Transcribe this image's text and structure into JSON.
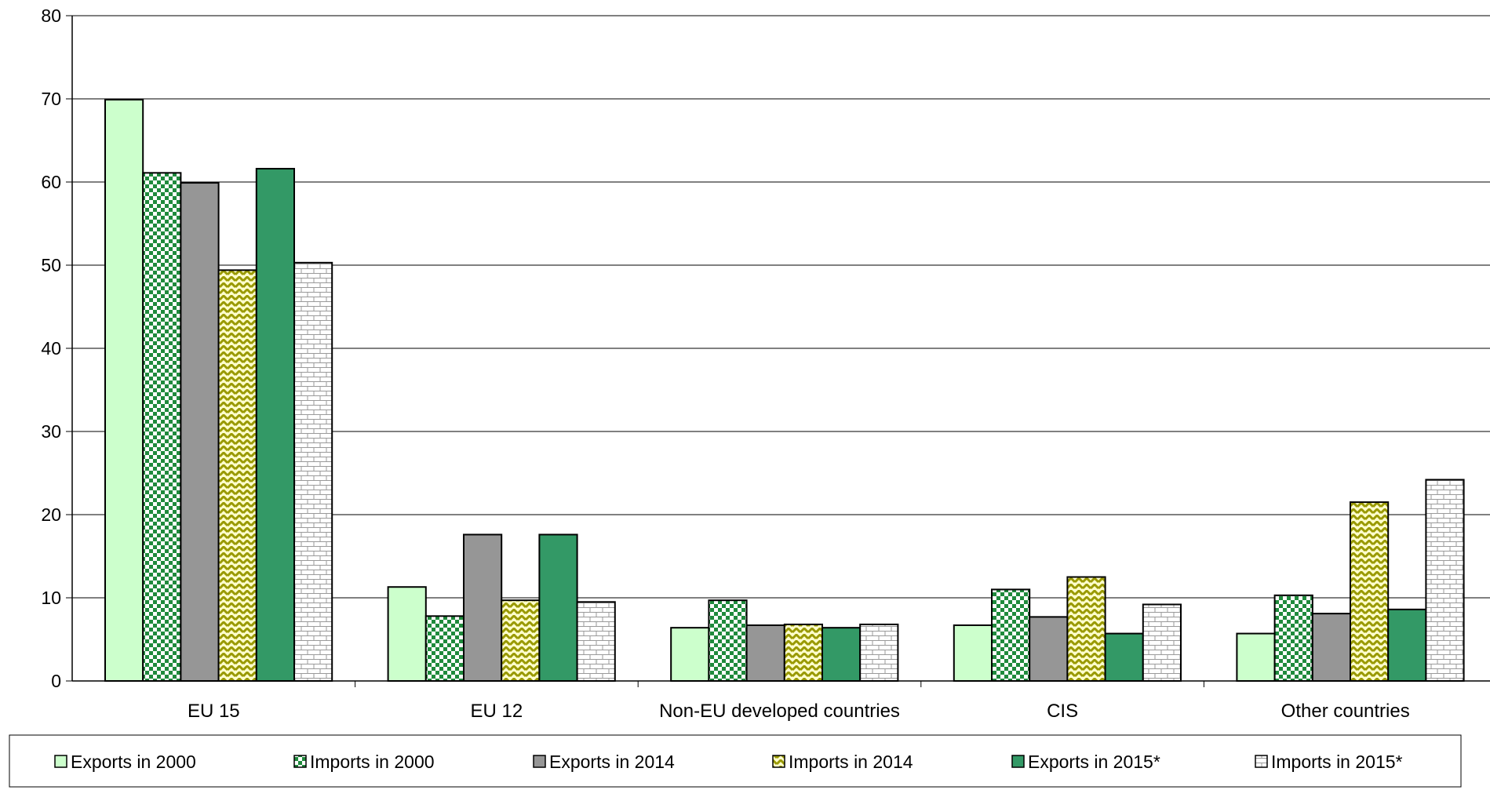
{
  "chart_data": {
    "type": "bar",
    "categories": [
      "EU 15",
      "EU 12",
      "Non-EU developed countries",
      "CIS",
      "Other countries"
    ],
    "series": [
      {
        "name": "Exports in 2000",
        "values": [
          69.9,
          11.3,
          6.4,
          6.7,
          5.7
        ],
        "color": "#ccffcc",
        "pattern": "solid"
      },
      {
        "name": "Imports in 2000",
        "values": [
          61.1,
          7.8,
          9.7,
          11.0,
          10.3
        ],
        "color": "#1f8a3c",
        "pattern": "checker"
      },
      {
        "name": "Exports in 2014",
        "values": [
          59.9,
          17.6,
          6.7,
          7.7,
          8.1
        ],
        "color": "#969696",
        "pattern": "solid"
      },
      {
        "name": "Imports in 2014",
        "values": [
          49.4,
          9.7,
          6.8,
          12.5,
          21.5
        ],
        "color": "#999900",
        "pattern": "zigzag"
      },
      {
        "name": "Exports in 2015*",
        "values": [
          61.6,
          17.6,
          6.4,
          5.7,
          8.6
        ],
        "color": "#339966",
        "pattern": "solid"
      },
      {
        "name": "Imports in 2015*",
        "values": [
          50.3,
          9.5,
          6.8,
          9.2,
          24.2
        ],
        "color": "#ffffff",
        "pattern": "brick"
      }
    ],
    "y_ticks": [
      0,
      10,
      20,
      30,
      40,
      50,
      60,
      70,
      80
    ],
    "ylim": [
      0,
      80
    ],
    "grid": true,
    "legend_position": "bottom"
  }
}
